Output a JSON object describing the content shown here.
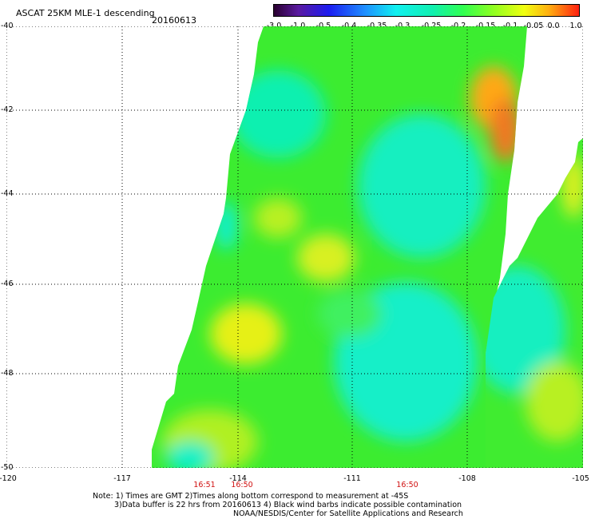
{
  "header": {
    "title": "ASCAT 25KM MLE-1 descending",
    "date": "20160613"
  },
  "colorbar": {
    "labels": [
      "-3.0",
      "-1.0",
      "-0.5",
      "-0.4",
      "-0.35",
      "-0.3",
      "-0.25",
      "-0.2",
      "-0.15",
      "-0.1",
      "-0.05",
      "0.0",
      "1.0"
    ],
    "colors": [
      "#2a0030",
      "#5a1aa0",
      "#1c1cf0",
      "#1e80ff",
      "#14c0ff",
      "#10f0f0",
      "#10f0c0",
      "#20ff80",
      "#40ff20",
      "#a0ff20",
      "#e8ff10",
      "#ffa010",
      "#ff3010"
    ]
  },
  "map": {
    "lat_labels": [
      "-40",
      "-42",
      "-44",
      "-46",
      "-48",
      "-50"
    ],
    "lon_labels": [
      "-120",
      "-117",
      "-114",
      "-111",
      "-108",
      "-105"
    ],
    "time_labels": [
      "16:51",
      "16:50",
      "16:50"
    ],
    "swath_color_low": "#10f0c8",
    "swath_color_mid": "#30ee30",
    "swath_color_high": "#e0f020",
    "swath_color_peak": "#ff8c10"
  },
  "notes": {
    "line1": "Note: 1) Times are GMT 2)Times along bottom correspond to measurement at -45S",
    "line2": "3)Data buffer is 22 hrs from 20160613 4) Black wind barbs indicate possible contamination",
    "line3": "NOAA/NESDIS/Center for Satellite Applications and Research"
  }
}
